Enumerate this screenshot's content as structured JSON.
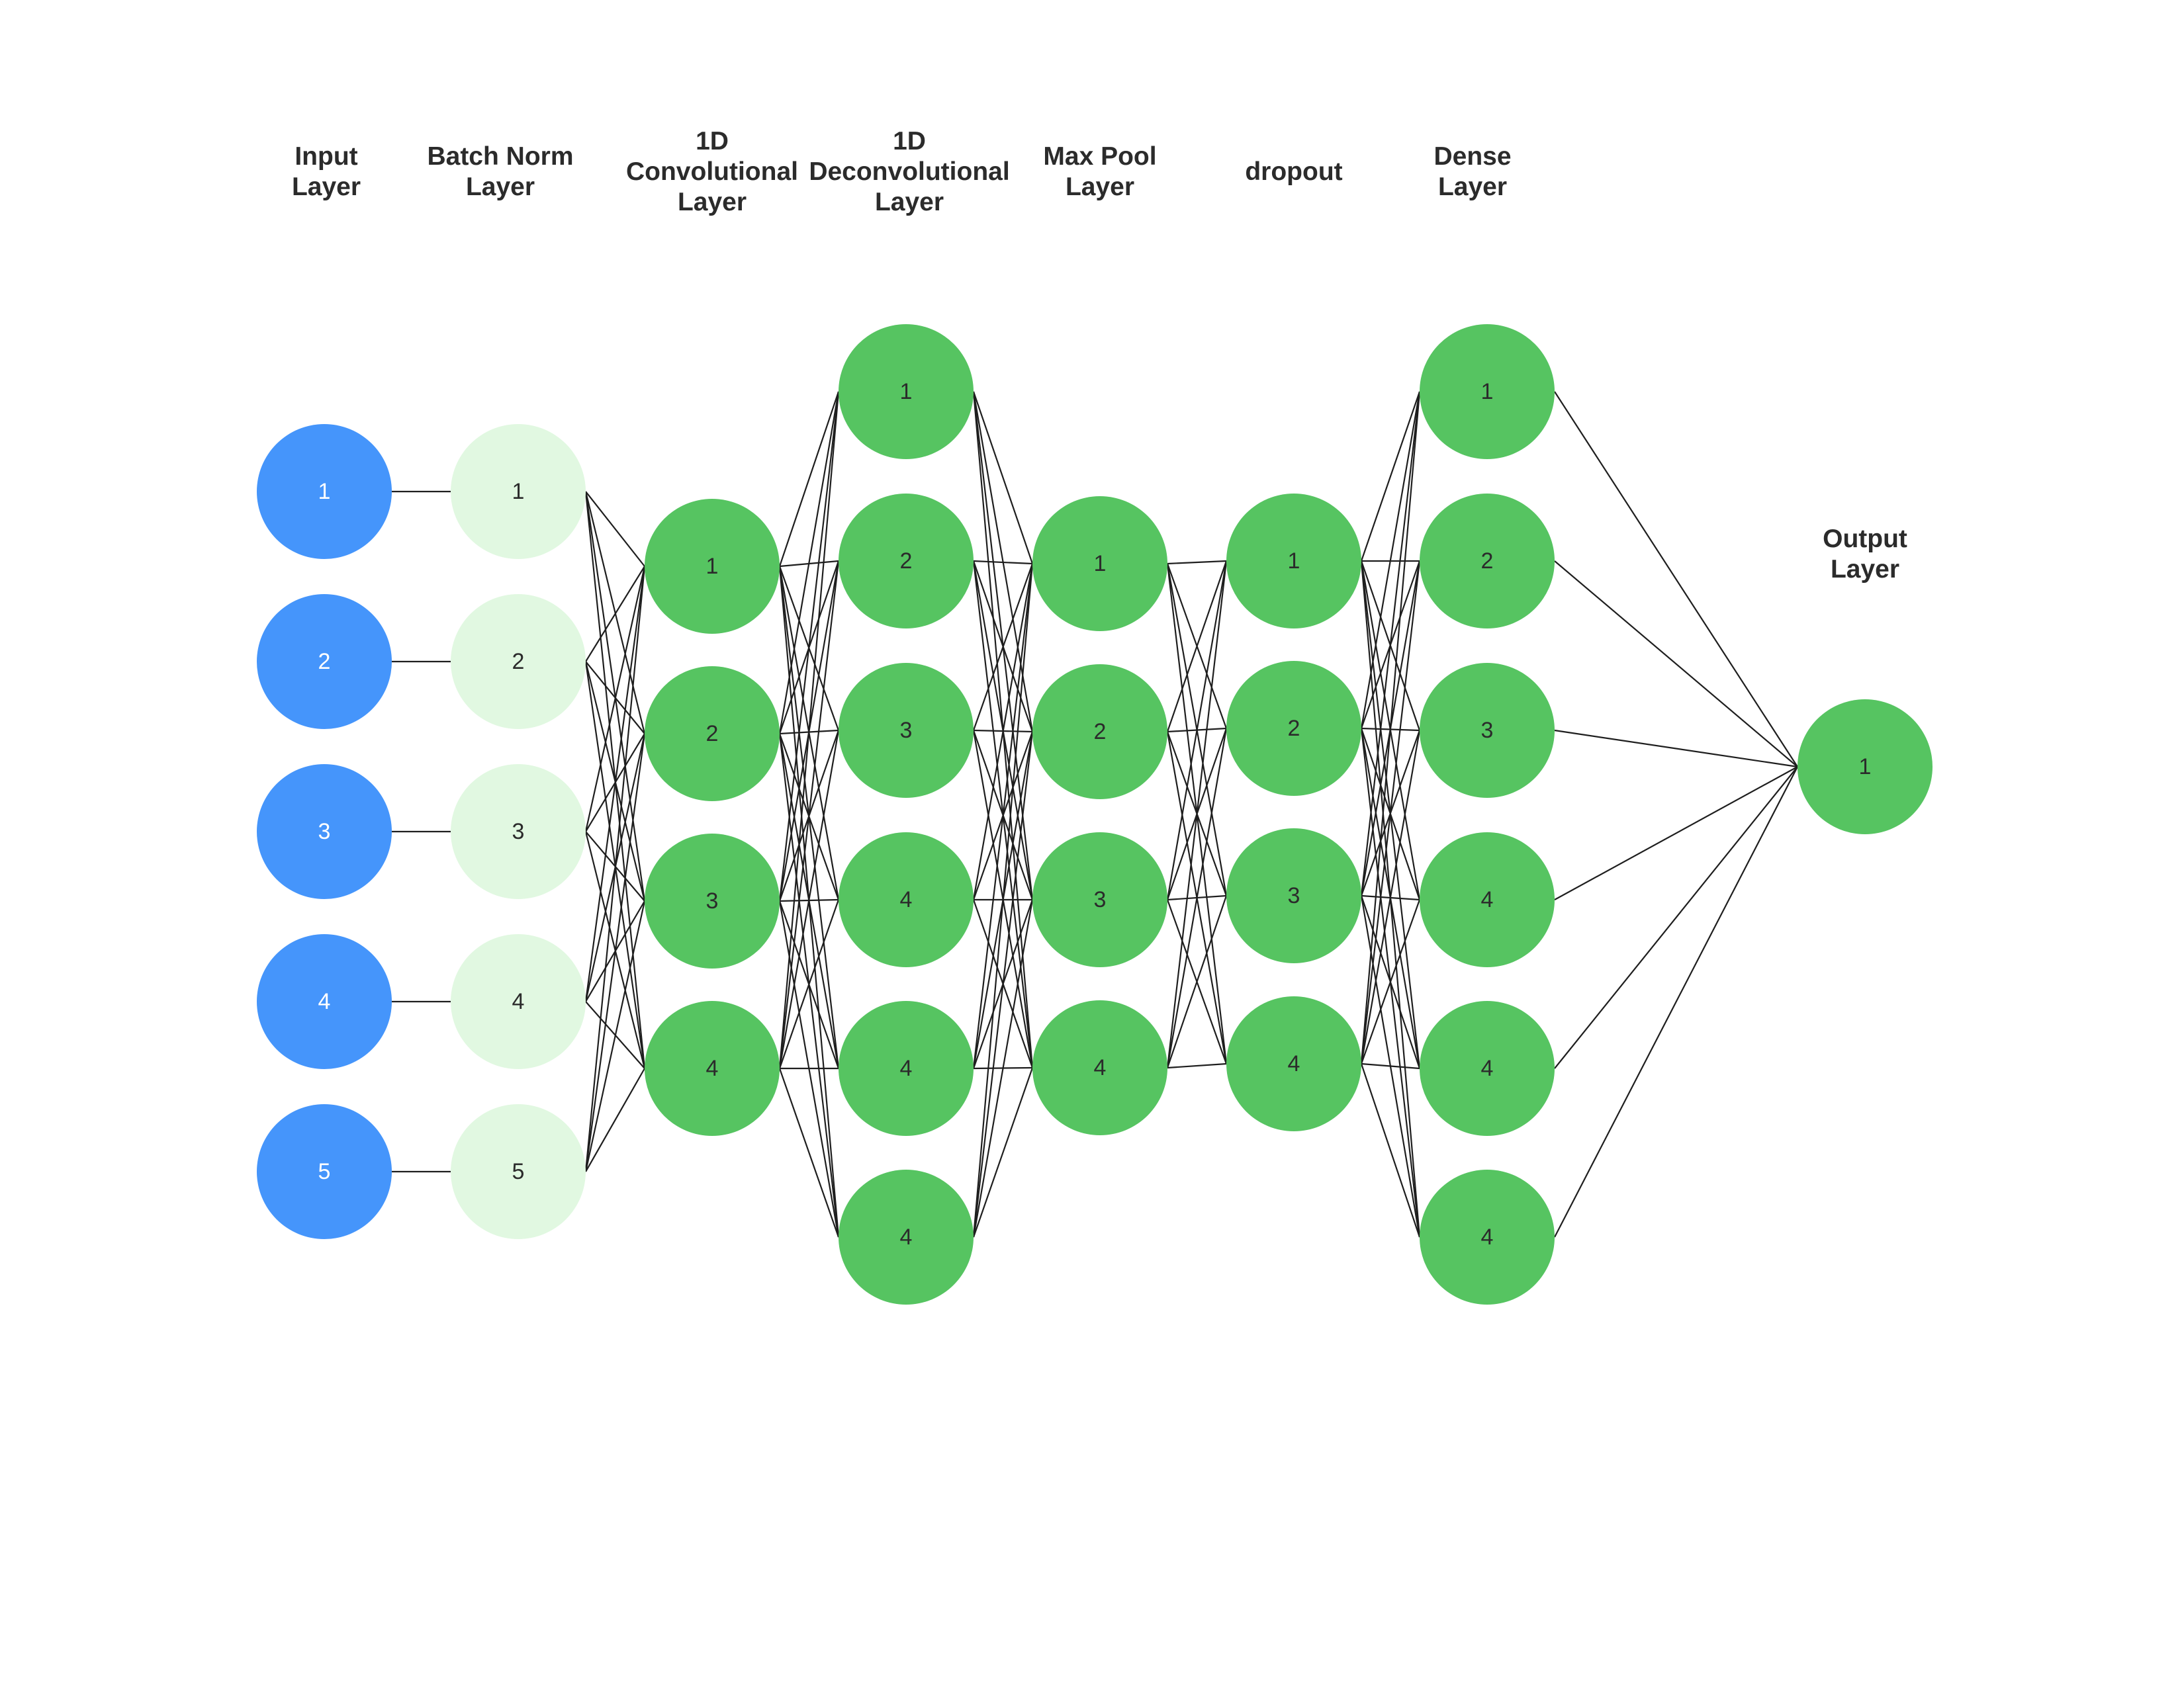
{
  "colors": {
    "input": "#4595fb",
    "batch_norm": "#e1f8e1",
    "hidden": "#56c461",
    "input_text": "#ffffff",
    "node_text": "#2b2b2b",
    "edge": "#1e1e1e"
  },
  "layers": [
    {
      "id": "input",
      "title": [
        "Input",
        "Layer"
      ],
      "color_key": "input",
      "nodes": [
        "1",
        "2",
        "3",
        "4",
        "5"
      ]
    },
    {
      "id": "batch-norm",
      "title": [
        "Batch Norm",
        "Layer"
      ],
      "color_key": "batch_norm",
      "nodes": [
        "1",
        "2",
        "3",
        "4",
        "5"
      ]
    },
    {
      "id": "conv1d",
      "title": [
        "1D",
        "Convolutional",
        "Layer"
      ],
      "color_key": "hidden",
      "nodes": [
        "1",
        "2",
        "3",
        "4"
      ]
    },
    {
      "id": "deconv1d",
      "title": [
        "1D",
        "Deconvolutional",
        "Layer"
      ],
      "color_key": "hidden",
      "nodes": [
        "1",
        "2",
        "3",
        "4",
        "4",
        "4"
      ]
    },
    {
      "id": "max-pool",
      "title": [
        "Max Pool",
        "Layer"
      ],
      "color_key": "hidden",
      "nodes": [
        "1",
        "2",
        "3",
        "4"
      ]
    },
    {
      "id": "dropout",
      "title": [
        "dropout"
      ],
      "color_key": "hidden",
      "nodes": [
        "1",
        "2",
        "3",
        "4"
      ]
    },
    {
      "id": "dense",
      "title": [
        "Dense",
        "Layer"
      ],
      "color_key": "hidden",
      "nodes": [
        "1",
        "2",
        "3",
        "4",
        "4",
        "4"
      ]
    },
    {
      "id": "output",
      "title": [
        "Output",
        "Layer"
      ],
      "color_key": "hidden",
      "nodes": [
        "1"
      ]
    }
  ],
  "connections": [
    {
      "from": "input",
      "to": "batch-norm",
      "mode": "one-to-one"
    },
    {
      "from": "batch-norm",
      "to": "conv1d",
      "mode": "full"
    },
    {
      "from": "conv1d",
      "to": "deconv1d",
      "mode": "full"
    },
    {
      "from": "deconv1d",
      "to": "max-pool",
      "mode": "full"
    },
    {
      "from": "max-pool",
      "to": "dropout",
      "mode": "full"
    },
    {
      "from": "dropout",
      "to": "dense",
      "mode": "full"
    },
    {
      "from": "dense",
      "to": "output",
      "mode": "full"
    }
  ]
}
